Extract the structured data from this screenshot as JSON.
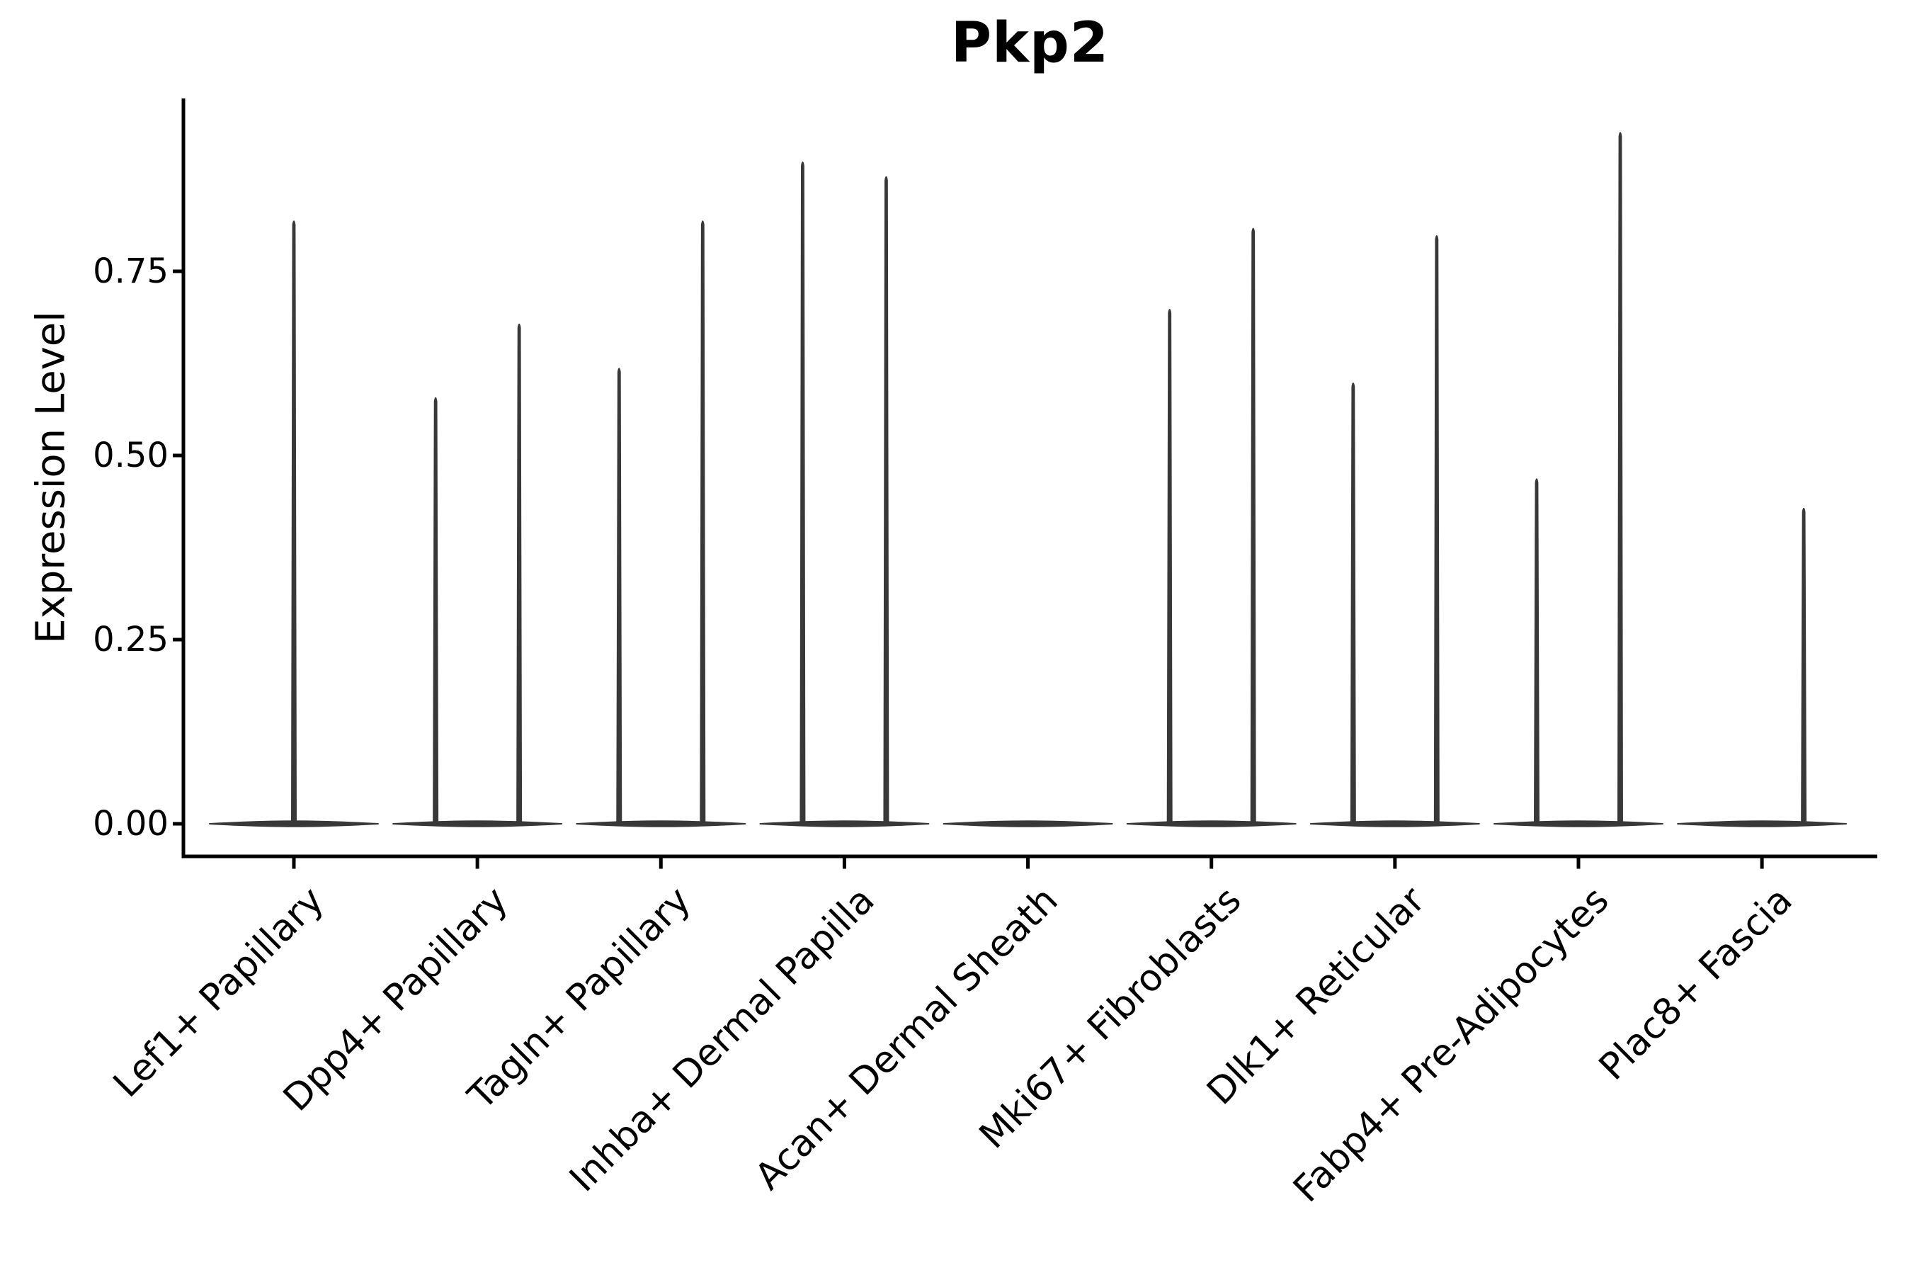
{
  "title": "Pkp2",
  "chart_data": {
    "type": "violin",
    "title": "Pkp2",
    "xlabel": "",
    "ylabel": "Expression Level",
    "ytick_labels": [
      "0.00",
      "0.25",
      "0.50",
      "0.75"
    ],
    "ytick_values": [
      0.0,
      0.25,
      0.5,
      0.75
    ],
    "ylim": [
      -0.045,
      0.985
    ],
    "grid": false,
    "legend": "none",
    "x_label_rotation_deg": 45,
    "categories": [
      "Lef1+ Papillary",
      "Dpp4+ Papillary",
      "Tagln+ Papillary",
      "Inhba+ Dermal Papilla",
      "Acan+ Dermal Sheath",
      "Mki67+ Fibroblasts",
      "Dlk1+ Reticular",
      "Fabp4+ Pre-Adipocytes",
      "Plac8+ Fascia"
    ],
    "violins": [
      {
        "category": "Lef1+ Papillary",
        "baseline": 0,
        "spikes": [
          {
            "group": "center",
            "max": 0.82
          }
        ]
      },
      {
        "category": "Dpp4+ Papillary",
        "baseline": 0,
        "spikes": [
          {
            "group": "left",
            "max": 0.58
          },
          {
            "group": "right",
            "max": 0.68
          }
        ]
      },
      {
        "category": "Tagln+ Papillary",
        "baseline": 0,
        "spikes": [
          {
            "group": "left",
            "max": 0.62
          },
          {
            "group": "right",
            "max": 0.82
          }
        ]
      },
      {
        "category": "Inhba+ Dermal Papilla",
        "baseline": 0,
        "spikes": [
          {
            "group": "left",
            "max": 0.9
          },
          {
            "group": "right",
            "max": 0.88
          }
        ]
      },
      {
        "category": "Acan+ Dermal Sheath",
        "baseline": 0,
        "spikes": []
      },
      {
        "category": "Mki67+ Fibroblasts",
        "baseline": 0,
        "spikes": [
          {
            "group": "left",
            "max": 0.7
          },
          {
            "group": "right",
            "max": 0.81
          }
        ]
      },
      {
        "category": "Dlk1+ Reticular",
        "baseline": 0,
        "spikes": [
          {
            "group": "left",
            "max": 0.6
          },
          {
            "group": "right",
            "max": 0.8
          }
        ]
      },
      {
        "category": "Fabp4+ Pre-Adipocytes",
        "baseline": 0,
        "spikes": [
          {
            "group": "left",
            "max": 0.47
          },
          {
            "group": "right",
            "max": 0.94
          }
        ]
      },
      {
        "category": "Plac8+ Fascia",
        "baseline": 0,
        "spikes": [
          {
            "group": "right",
            "max": 0.43
          }
        ]
      }
    ],
    "colors": {
      "violin": "#383838",
      "axis": "#000000",
      "text": "#000000"
    }
  }
}
